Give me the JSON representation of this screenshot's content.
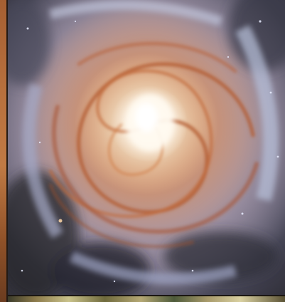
{
  "image": {
    "subject": "galaxy-photo",
    "colors": {
      "core": "#fff6e8",
      "inner_arms": "#e2a57a",
      "dust_lanes": "#b35a2e",
      "outer_arms": "#8e8ea8",
      "edge": "#2a2a30",
      "left_frame": "#b8703d"
    }
  }
}
